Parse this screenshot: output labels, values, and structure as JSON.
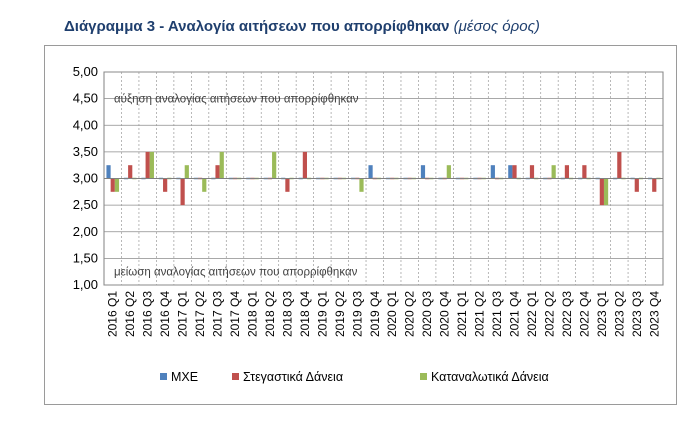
{
  "title": {
    "main": "Διάγραμμα 3 - Αναλογία αιτήσεων που απορρίφθηκαν",
    "sub": "(μέσος όρος)"
  },
  "chart_data": {
    "type": "bar",
    "ylim": [
      1.0,
      5.0
    ],
    "baseline": 3.0,
    "yticks": [
      "5,00",
      "4,50",
      "4,00",
      "3,50",
      "3,00",
      "2,50",
      "2,00",
      "1,50",
      "1,00"
    ],
    "annotation_top": "αύξηση αναλογίας αιτήσεων που απορρίφθηκαν",
    "annotation_bottom": "μείωση αναλογίας αιτήσεων που απορρίφθηκαν",
    "grid": true,
    "legend_position": "bottom",
    "categories": [
      "2016 Q1",
      "2016 Q2",
      "2016 Q3",
      "2016 Q4",
      "2017 Q1",
      "2017 Q2",
      "2017 Q3",
      "2017 Q4",
      "2018 Q1",
      "2018 Q2",
      "2018 Q3",
      "2018 Q4",
      "2019 Q1",
      "2019 Q2",
      "2019 Q3",
      "2019 Q4",
      "2020 Q1",
      "2020 Q2",
      "2020 Q3",
      "2020 Q4",
      "2021 Q1",
      "2021 Q2",
      "2021 Q3",
      "2021 Q4",
      "2022 Q1",
      "2022 Q2",
      "2022 Q3",
      "2022 Q4",
      "2023 Q1",
      "2023 Q2",
      "2023 Q3",
      "2023 Q4"
    ],
    "series": [
      {
        "name": "ΜΧΕ",
        "color": "#4f81bd",
        "values": [
          3.25,
          3.0,
          3.0,
          3.0,
          3.0,
          3.0,
          3.0,
          3.0,
          3.0,
          3.0,
          3.0,
          3.0,
          3.0,
          3.0,
          3.0,
          3.25,
          3.0,
          3.0,
          3.25,
          3.0,
          3.0,
          3.0,
          3.25,
          3.25,
          3.0,
          3.0,
          3.0,
          3.0,
          3.0,
          3.0,
          3.0,
          3.0
        ]
      },
      {
        "name": "Στεγαστικά Δάνεια",
        "color": "#c0504d",
        "values": [
          2.75,
          3.25,
          3.5,
          2.75,
          2.5,
          3.0,
          3.25,
          3.0,
          3.0,
          3.0,
          2.75,
          3.5,
          3.0,
          3.0,
          3.0,
          3.0,
          3.0,
          3.0,
          3.0,
          3.0,
          3.0,
          3.0,
          3.0,
          3.25,
          3.25,
          3.0,
          3.25,
          3.25,
          2.5,
          3.5,
          2.75,
          2.75
        ]
      },
      {
        "name": "Καταναλωτικά Δάνεια",
        "color": "#9bbb59",
        "values": [
          2.75,
          3.0,
          3.5,
          3.0,
          3.25,
          2.75,
          3.5,
          3.0,
          3.0,
          3.5,
          3.0,
          3.0,
          3.0,
          3.0,
          2.75,
          3.0,
          3.0,
          3.0,
          3.0,
          3.25,
          3.0,
          3.0,
          3.0,
          3.0,
          3.0,
          3.25,
          3.0,
          3.0,
          2.5,
          3.0,
          3.0,
          3.0
        ]
      }
    ]
  }
}
